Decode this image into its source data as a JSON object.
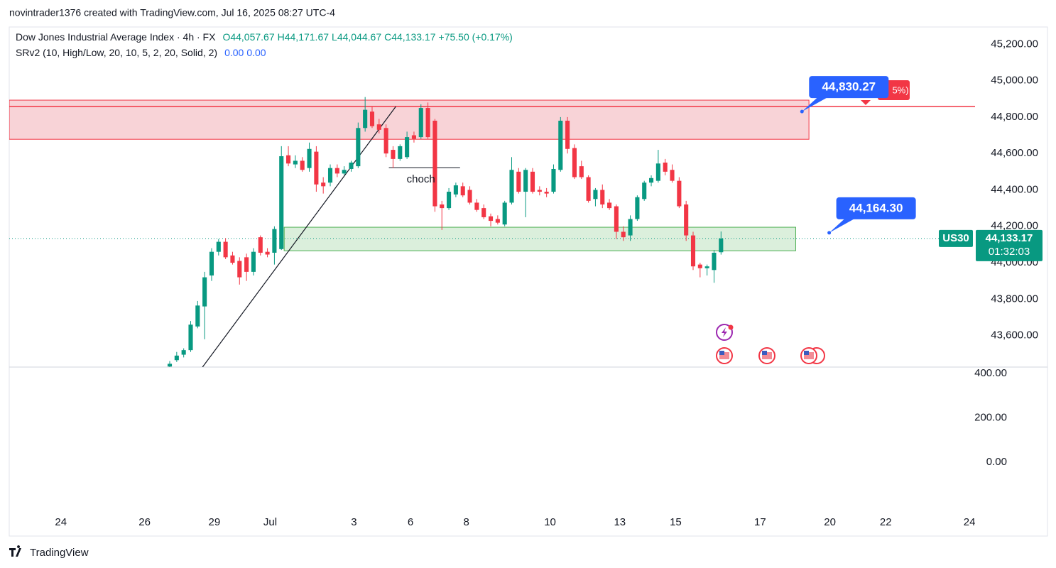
{
  "header": {
    "credit": "novintrader1376 created with TradingView.com, Jul 16, 2025 08:27 UTC-4",
    "footer": "TradingView"
  },
  "chart_data": [
    {
      "type": "candlestick",
      "title": "Dow Jones Industrial Average Index · 4h · FX",
      "legend_values": [
        "O44,057.67",
        "H44,171.67",
        "L44,044.67",
        "C44,133.17",
        "+75.50 (+0.17%)"
      ],
      "up_color": "#089981",
      "down_color": "#f23645",
      "x": [
        23,
        24,
        25,
        26,
        27,
        28,
        29,
        30,
        31,
        32,
        33,
        34,
        35,
        36,
        37,
        38,
        39,
        40,
        41,
        42,
        43,
        44,
        45,
        46,
        47,
        48,
        49,
        50,
        51,
        52,
        53,
        54,
        55,
        56,
        57,
        58,
        59,
        60,
        61,
        62,
        63,
        64,
        65,
        66,
        67,
        68,
        69,
        70,
        71,
        72,
        73,
        74,
        75,
        76,
        77,
        78,
        79,
        80,
        81,
        82,
        83,
        84,
        85,
        86,
        87,
        88,
        89,
        90,
        91,
        92,
        93,
        94,
        95,
        96,
        97,
        98,
        99,
        100,
        101,
        102
      ],
      "open": [
        43430,
        43465,
        43495,
        43520,
        43650,
        43760,
        43930,
        44060,
        44115,
        44040,
        44010,
        44030,
        43950,
        44140,
        44060,
        44055,
        44075,
        44590,
        44540,
        44560,
        44520,
        44610,
        44440,
        44440,
        44520,
        44490,
        44515,
        44530,
        44740,
        44830,
        44760,
        44740,
        44620,
        44570,
        44580,
        44700,
        44690,
        44850,
        44780,
        44320,
        44300,
        44375,
        44420,
        44400,
        44330,
        44300,
        44255,
        44240,
        44210,
        44330,
        44500,
        44390,
        44500,
        44400,
        44390,
        44390,
        44510,
        44780,
        44630,
        44530,
        44470,
        44350,
        44400,
        44330,
        44310,
        44170,
        44150,
        44240,
        44350,
        44440,
        44450,
        44550,
        44510,
        44450,
        44320,
        44150,
        43990,
        43970,
        43960,
        44057.67
      ],
      "high": [
        43460,
        43510,
        43530,
        43680,
        43790,
        43950,
        44080,
        44130,
        44135,
        44060,
        44030,
        44050,
        44080,
        44150,
        44080,
        44200,
        44640,
        44640,
        44590,
        44580,
        44660,
        44640,
        44470,
        44540,
        44540,
        44530,
        44560,
        44770,
        44910,
        44860,
        44790,
        44760,
        44640,
        44650,
        44720,
        44720,
        44870,
        44880,
        44790,
        44340,
        44410,
        44440,
        44440,
        44420,
        44350,
        44320,
        44270,
        44260,
        44340,
        44580,
        44520,
        44520,
        44520,
        44420,
        44410,
        44540,
        44800,
        44800,
        44650,
        44560,
        44480,
        44410,
        44430,
        44350,
        44320,
        44200,
        44260,
        44370,
        44450,
        44480,
        44620,
        44570,
        44540,
        44470,
        44340,
        44170,
        44000,
        43990,
        44070,
        44171.67
      ],
      "low": [
        43425,
        43455,
        43480,
        43510,
        43640,
        43580,
        43900,
        44040,
        44020,
        43990,
        43880,
        43900,
        43930,
        44040,
        44030,
        43990,
        44070,
        44530,
        44520,
        44500,
        44500,
        44390,
        44380,
        44420,
        44470,
        44480,
        44500,
        44520,
        44720,
        44740,
        44710,
        44580,
        44520,
        44560,
        44570,
        44660,
        44680,
        44680,
        44280,
        44180,
        44290,
        44360,
        44360,
        44320,
        44280,
        44240,
        44200,
        44210,
        44200,
        44320,
        44380,
        44250,
        44380,
        44370,
        44360,
        44380,
        44500,
        44600,
        44460,
        44460,
        44330,
        44310,
        44300,
        44290,
        44130,
        44120,
        44120,
        44230,
        44340,
        44420,
        44440,
        44480,
        44440,
        44300,
        44120,
        43960,
        43920,
        43930,
        43890,
        44044.67
      ],
      "close": [
        43445,
        43490,
        43520,
        43660,
        43765,
        43920,
        44060,
        44115,
        44030,
        44000,
        43920,
        43950,
        44060,
        44055,
        44045,
        44185,
        44585,
        44545,
        44560,
        44510,
        44625,
        44430,
        44420,
        44520,
        44490,
        44510,
        44550,
        44740,
        44840,
        44750,
        44730,
        44600,
        44570,
        44640,
        44690,
        44680,
        44850,
        44690,
        44310,
        44300,
        44390,
        44425,
        44370,
        44330,
        44290,
        44250,
        44230,
        44220,
        44330,
        44510,
        44390,
        44510,
        44390,
        44390,
        44380,
        44515,
        44780,
        44625,
        44470,
        44470,
        44340,
        44400,
        44320,
        44300,
        44170,
        44140,
        44240,
        44360,
        44440,
        44465,
        44545,
        44500,
        44450,
        44310,
        44150,
        43980,
        43970,
        43980,
        44055,
        44133.17
      ],
      "xlim": [
        0,
        138.4
      ],
      "xticks": [
        {
          "value": 7.4,
          "label": "24"
        },
        {
          "value": 19.4,
          "label": "26"
        },
        {
          "value": 29.4,
          "label": "29"
        },
        {
          "value": 37.4,
          "label": "Jul"
        },
        {
          "value": 49.4,
          "label": "3"
        },
        {
          "value": 57.5,
          "label": "6"
        },
        {
          "value": 65.5,
          "label": "8"
        },
        {
          "value": 77.5,
          "label": "10"
        },
        {
          "value": 87.5,
          "label": "13"
        },
        {
          "value": 95.5,
          "label": "15"
        },
        {
          "value": 107.6,
          "label": "17"
        },
        {
          "value": 117.6,
          "label": "20"
        },
        {
          "value": 125.6,
          "label": "22"
        },
        {
          "value": 137.6,
          "label": "24"
        }
      ],
      "ylim": [
        43427,
        45287
      ],
      "yticks": [
        {
          "value": 43600,
          "label": "43,600.00"
        },
        {
          "value": 43800,
          "label": "43,800.00"
        },
        {
          "value": 44000,
          "label": "44,000.00"
        },
        {
          "value": 44200,
          "label": "44,200.00"
        },
        {
          "value": 44400,
          "label": "44,400.00"
        },
        {
          "value": 44600,
          "label": "44,600.00"
        },
        {
          "value": 44800,
          "label": "44,800.00"
        },
        {
          "value": 45000,
          "label": "45,000.00"
        },
        {
          "value": 45200,
          "label": "45,200.00"
        }
      ],
      "grid": false,
      "zones": [
        {
          "top": 44893,
          "bottom": 44678,
          "x0": 0,
          "x1": 114.6,
          "color": "#f23645",
          "fill": "#f8d3d7"
        },
        {
          "top": 44195,
          "bottom": 44066,
          "x0": 39.4,
          "x1": 112.7,
          "color": "#4caf50",
          "fill": "#dbefdc"
        }
      ],
      "lines": [
        {
          "value": 44858,
          "color": "#f23645",
          "label": "5%)"
        }
      ],
      "trendline": {
        "x": [
          27.7,
          55.4
        ],
        "y": [
          43427,
          44858
        ],
        "color": "#131722"
      },
      "choch": {
        "label": "choch",
        "value": 44522,
        "x": [
          54.4,
          64.6
        ]
      },
      "annotations": [
        {
          "label": "44,830.27",
          "value": 44830.27,
          "x": 113.6,
          "color": "#2962ff"
        },
        {
          "label": "44,164.30",
          "value": 44164.3,
          "x": 117.5,
          "color": "#2962ff"
        }
      ],
      "last_price": {
        "symbol": "US30",
        "label": "44,133.17",
        "countdown": "01:32:03",
        "color": "#089981"
      }
    },
    {
      "type": "indicator",
      "title": "SRv2 (10, High/Low, 20, 10, 5, 2, 20, Solid, 2)",
      "legend_values": [
        "0.00",
        "0.00"
      ],
      "color": "#2962ff",
      "ylim": [
        -227,
        429
      ],
      "yticks": [
        {
          "value": 0,
          "label": "0.00"
        },
        {
          "value": 200,
          "label": "200.00"
        },
        {
          "value": 400,
          "label": "400.00"
        }
      ]
    }
  ]
}
